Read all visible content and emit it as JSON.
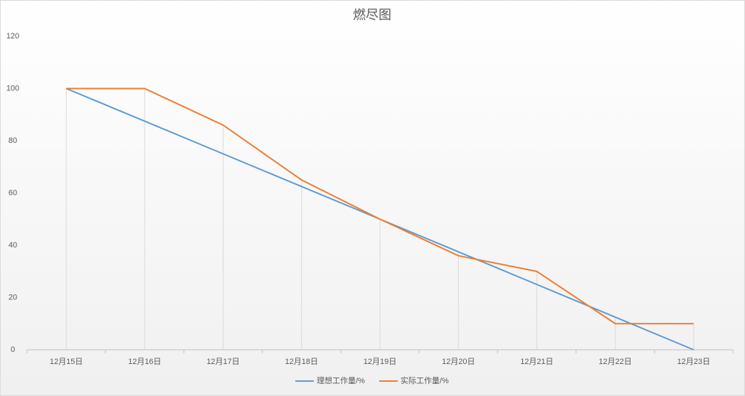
{
  "chart_data": {
    "type": "line",
    "title": "燃尽图",
    "categories": [
      "12月15日",
      "12月16日",
      "12月17日",
      "12月18日",
      "12月19日",
      "12月20日",
      "12月21日",
      "12月22日",
      "12月23日"
    ],
    "series": [
      {
        "name": "理想工作量/%",
        "color": "#5b9bd5",
        "values": [
          100,
          87.5,
          75,
          62.5,
          50,
          37.5,
          25,
          12.5,
          0
        ]
      },
      {
        "name": "实际工作量/%",
        "color": "#ed7d31",
        "values": [
          100,
          100,
          86,
          65,
          50,
          36,
          30,
          10,
          10
        ]
      }
    ],
    "ylim": [
      0,
      120
    ],
    "yticks": [
      0,
      20,
      40,
      60,
      80,
      100,
      120
    ],
    "grid": false,
    "drop_lines": true,
    "legend": "bottom"
  }
}
